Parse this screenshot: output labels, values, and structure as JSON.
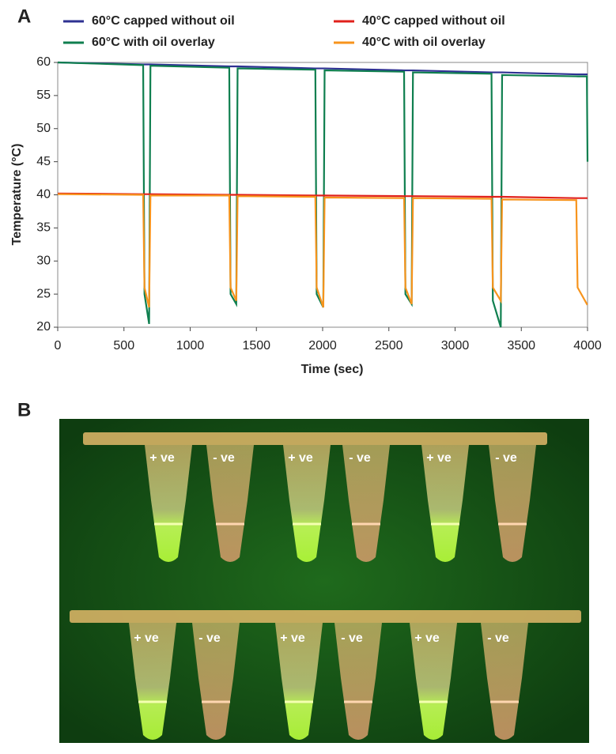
{
  "panels": {
    "a": "A",
    "b": "B"
  },
  "chart_data": {
    "type": "line",
    "legend": "top",
    "x_label": "Time (sec)",
    "y_label": "Temperature (°C)",
    "x": [
      0,
      645,
      655,
      690,
      700,
      1295,
      1305,
      1348,
      1358,
      1945,
      1955,
      2005,
      2015,
      2615,
      2625,
      2672,
      2682,
      3275,
      3285,
      3345,
      3355,
      3915,
      3925,
      3995,
      4000
    ],
    "series": [
      {
        "name": "60°C capped without oil",
        "color": "#2e3192",
        "values": [
          60,
          59.7,
          59.7,
          59.7,
          59.7,
          59.4,
          59.4,
          59.4,
          59.4,
          59.1,
          59.1,
          59.1,
          59.1,
          58.8,
          58.8,
          58.8,
          58.8,
          58.5,
          58.5,
          58.5,
          58.5,
          58.2,
          58.2,
          58.2,
          58.2
        ]
      },
      {
        "name": "60°C with oil overlay",
        "color": "#0f7f4f",
        "values": [
          60,
          59.6,
          25,
          20.5,
          59.5,
          59.2,
          25,
          23.5,
          59.1,
          58.9,
          25,
          23,
          58.8,
          58.6,
          25,
          23.5,
          58.5,
          58.3,
          24,
          20,
          58.1,
          57.9,
          57.9,
          57.9,
          45
        ]
      },
      {
        "name": "40°C capped without oil",
        "color": "#e0201b",
        "values": [
          40.2,
          40.1,
          40.1,
          40.1,
          40.1,
          40.0,
          40.0,
          40.0,
          40.0,
          39.9,
          39.9,
          39.9,
          39.9,
          39.8,
          39.8,
          39.8,
          39.8,
          39.7,
          39.7,
          39.7,
          39.7,
          39.5,
          39.5,
          39.5,
          39.5
        ]
      },
      {
        "name": "40°C with oil overlay",
        "color": "#f7941d",
        "values": [
          40.1,
          40.0,
          26,
          23,
          39.9,
          39.9,
          26,
          24,
          39.8,
          39.7,
          26,
          23,
          39.6,
          39.5,
          26,
          23.5,
          39.5,
          39.4,
          26,
          24,
          39.3,
          39.2,
          26,
          23.5,
          23.6
        ]
      }
    ],
    "xlim": [
      0,
      4000
    ],
    "xticks": [
      0,
      500,
      1000,
      1500,
      2000,
      2500,
      3000,
      3500,
      4000
    ],
    "ylim": [
      20,
      60
    ],
    "yticks": [
      20,
      25,
      30,
      35,
      40,
      45,
      50,
      55,
      60
    ]
  },
  "photo": {
    "top_labels": [
      "+ ve",
      "- ve",
      "+ ve",
      "- ve",
      "+ ve",
      "- ve"
    ],
    "bottom_labels": [
      "+ ve",
      "- ve",
      "+ ve",
      "- ve",
      "+ ve",
      "- ve"
    ]
  }
}
